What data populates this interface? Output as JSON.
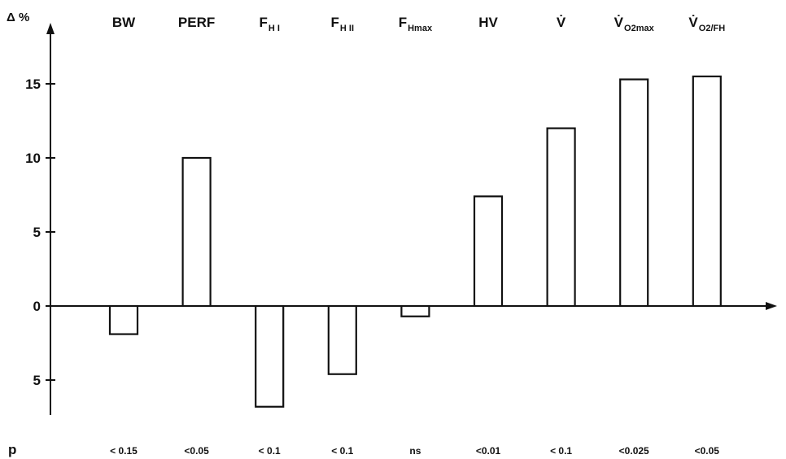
{
  "chart_data": {
    "type": "bar",
    "ylabel": "Δ %",
    "ylim": [
      -7,
      19
    ],
    "yticks": [
      {
        "value": 15,
        "label": "15"
      },
      {
        "value": 10,
        "label": "10"
      },
      {
        "value": 5,
        "label": "5"
      },
      {
        "value": 0,
        "label": "0"
      },
      {
        "value": -5,
        "label": "5"
      }
    ],
    "categories": [
      {
        "label": "BW",
        "sub": "",
        "value": -1.9,
        "p": "< 0.15"
      },
      {
        "label": "PERF",
        "sub": "",
        "value": 10.0,
        "p": "<0.05"
      },
      {
        "label": "F",
        "sub": "H I",
        "value": -6.8,
        "p": "< 0.1"
      },
      {
        "label": "F",
        "sub": "H II",
        "value": -4.6,
        "p": "< 0.1"
      },
      {
        "label": "F",
        "sub": "Hmax",
        "value": -0.7,
        "p": "ns"
      },
      {
        "label": "HV",
        "sub": "",
        "value": 7.4,
        "p": "<0.01"
      },
      {
        "label": "V̇",
        "sub": "",
        "value": 12.0,
        "p": "< 0.1"
      },
      {
        "label": "V̇",
        "sub": "O2max",
        "value": 15.3,
        "p": "<0.025"
      },
      {
        "label": "V̇",
        "sub": "O2/FH",
        "value": 15.5,
        "p": "<0.05"
      }
    ],
    "p_row_label": "p",
    "legend": "none",
    "grid": false,
    "colors": {
      "bar_fill": "#ffffff",
      "stroke": "#111111"
    }
  }
}
